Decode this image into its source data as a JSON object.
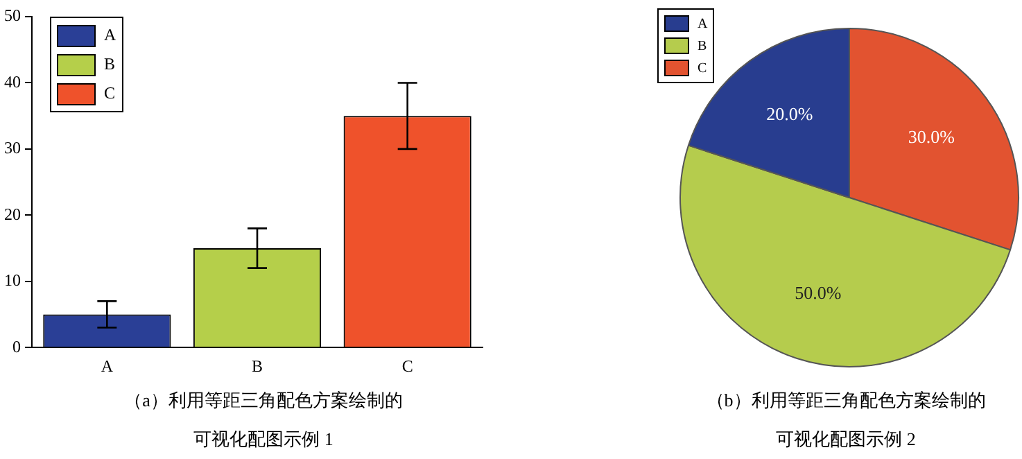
{
  "chart_data": [
    {
      "type": "bar",
      "categories": [
        "A",
        "B",
        "C"
      ],
      "series": [
        {
          "name": "A",
          "color": "#2a3f96",
          "values": [
            5,
            null,
            null
          ],
          "errors": [
            2,
            null,
            null
          ]
        },
        {
          "name": "B",
          "color": "#b5cf4a",
          "values": [
            null,
            15,
            null
          ],
          "errors": [
            null,
            3,
            null
          ]
        },
        {
          "name": "C",
          "color": "#ef522b",
          "values": [
            null,
            null,
            35
          ],
          "errors": [
            null,
            null,
            5
          ]
        }
      ],
      "ylim": [
        0,
        50
      ],
      "yticks": [
        0,
        10,
        20,
        30,
        40,
        50
      ],
      "legend": "top left",
      "annotations": [
        "（a）利用等距三角配色方案绘制的",
        "可视化配图示例 1"
      ]
    },
    {
      "type": "pie",
      "categories": [
        "A",
        "B",
        "C"
      ],
      "values": [
        20,
        50,
        30
      ],
      "colors": [
        "#283d8f",
        "#b5cc4d",
        "#e25330"
      ],
      "value_labels": [
        "20.0%",
        "50.0%",
        "30.0%"
      ],
      "legend": "top left",
      "annotations": [
        "（b）利用等距三角配色方案绘制的",
        "可视化配图示例 2"
      ]
    }
  ]
}
